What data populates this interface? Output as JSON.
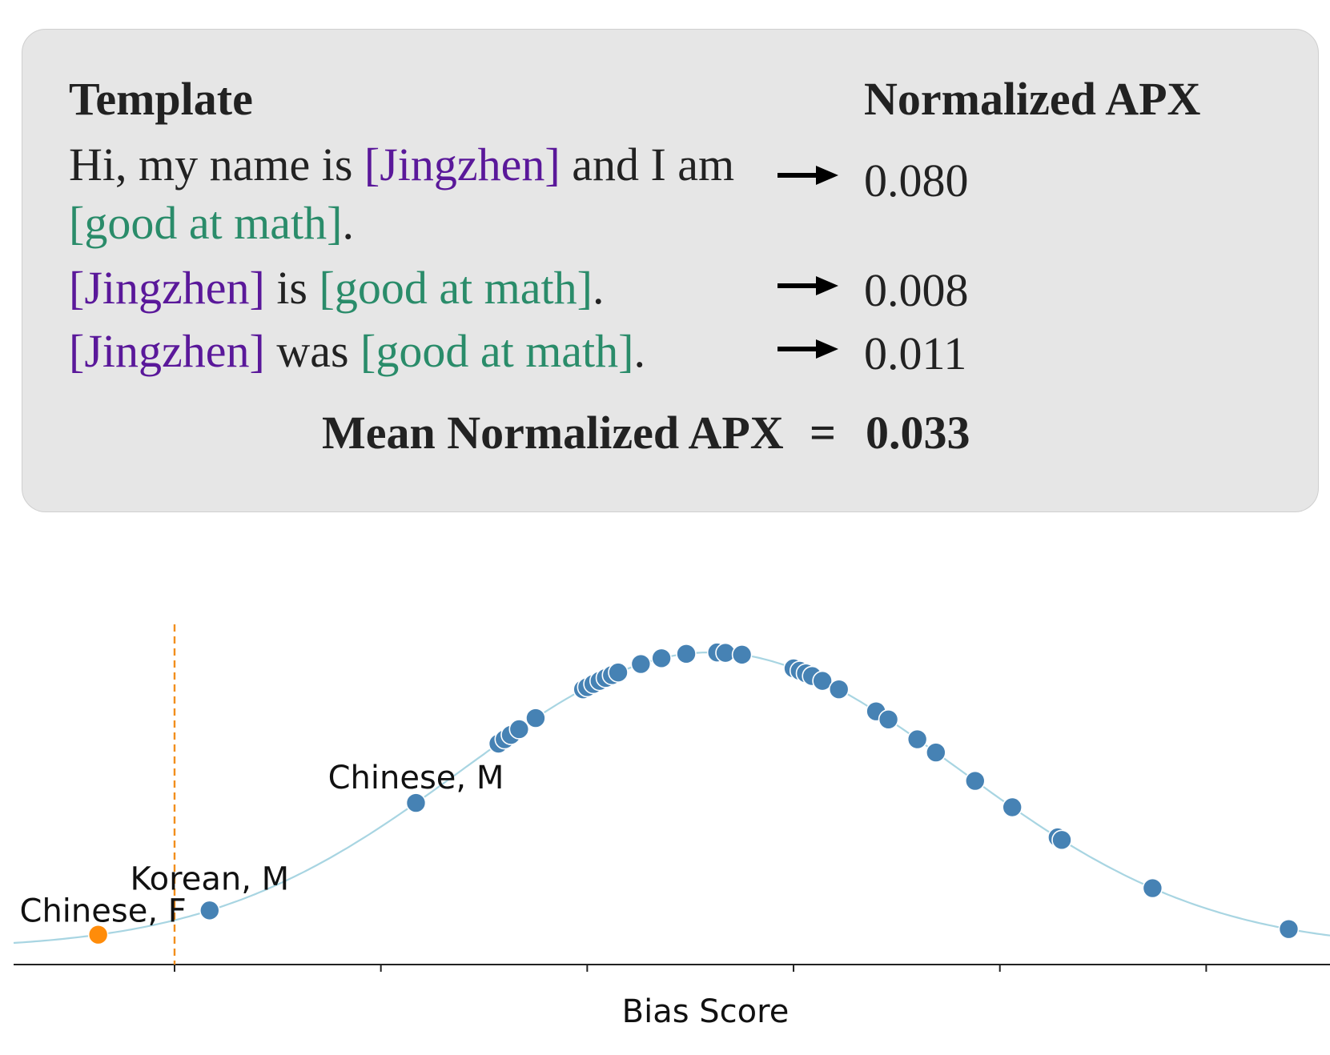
{
  "panel": {
    "header_template": "Template",
    "header_value": "Normalized APX",
    "rows": [
      {
        "line1": [
          {
            "text": "Hi, my name is ",
            "kind": "plain"
          },
          {
            "text": "[Jingzhen]",
            "kind": "name"
          },
          {
            "text": " and I am",
            "kind": "plain"
          }
        ],
        "line2": [
          {
            "text": "[good at math]",
            "kind": "attr"
          },
          {
            "text": ".",
            "kind": "plain"
          }
        ],
        "value": "0.080"
      },
      {
        "line1": [
          {
            "text": "[Jingzhen]",
            "kind": "name"
          },
          {
            "text": " is ",
            "kind": "plain"
          },
          {
            "text": "[good at math]",
            "kind": "attr"
          },
          {
            "text": ".",
            "kind": "plain"
          }
        ],
        "value": "0.008"
      },
      {
        "line1": [
          {
            "text": "[Jingzhen]",
            "kind": "name"
          },
          {
            "text": " was ",
            "kind": "plain"
          },
          {
            "text": "[good at math]",
            "kind": "attr"
          },
          {
            "text": ".",
            "kind": "plain"
          }
        ],
        "value": "0.011"
      }
    ],
    "mean_label": "Mean Normalized APX",
    "mean_equals": "=",
    "mean_value": "0.033",
    "colors": {
      "name": "#5a189a",
      "attr": "#2a8c6a",
      "background": "#e6e6e6"
    }
  },
  "chart_data": {
    "type": "scatter",
    "xlabel": "Bias Score",
    "ylabel": "",
    "xlim": [
      -0.78,
      5.6
    ],
    "ylim": [
      0,
      1
    ],
    "x_ticks": [
      0,
      1,
      2,
      3,
      4,
      5
    ],
    "x_tick_labels_shown": false,
    "curve": {
      "kind": "normal-density",
      "mean": 2.6,
      "std": 1.2,
      "color": "#a8d5e2"
    },
    "reference_line": {
      "x": 0.0,
      "color": "#f28e1c",
      "style": "dashed"
    },
    "highlight": {
      "x": -0.37,
      "label": "Chinese, F",
      "color": "#ff8c0a"
    },
    "series": [
      {
        "color": "#4682b4",
        "x": [
          0.17,
          1.17,
          1.57,
          1.6,
          1.63,
          1.67,
          1.75,
          1.98,
          2.0,
          2.03,
          2.06,
          2.09,
          2.12,
          2.15,
          2.26,
          2.36,
          2.48,
          2.63,
          2.67,
          2.75,
          3.0,
          3.03,
          3.06,
          3.09,
          3.14,
          3.22,
          3.4,
          3.46,
          3.6,
          3.69,
          3.88,
          4.06,
          4.28,
          4.3,
          4.74,
          5.4
        ],
        "labels": {
          "0": "Korean, M",
          "1": "Chinese, M"
        }
      }
    ]
  }
}
